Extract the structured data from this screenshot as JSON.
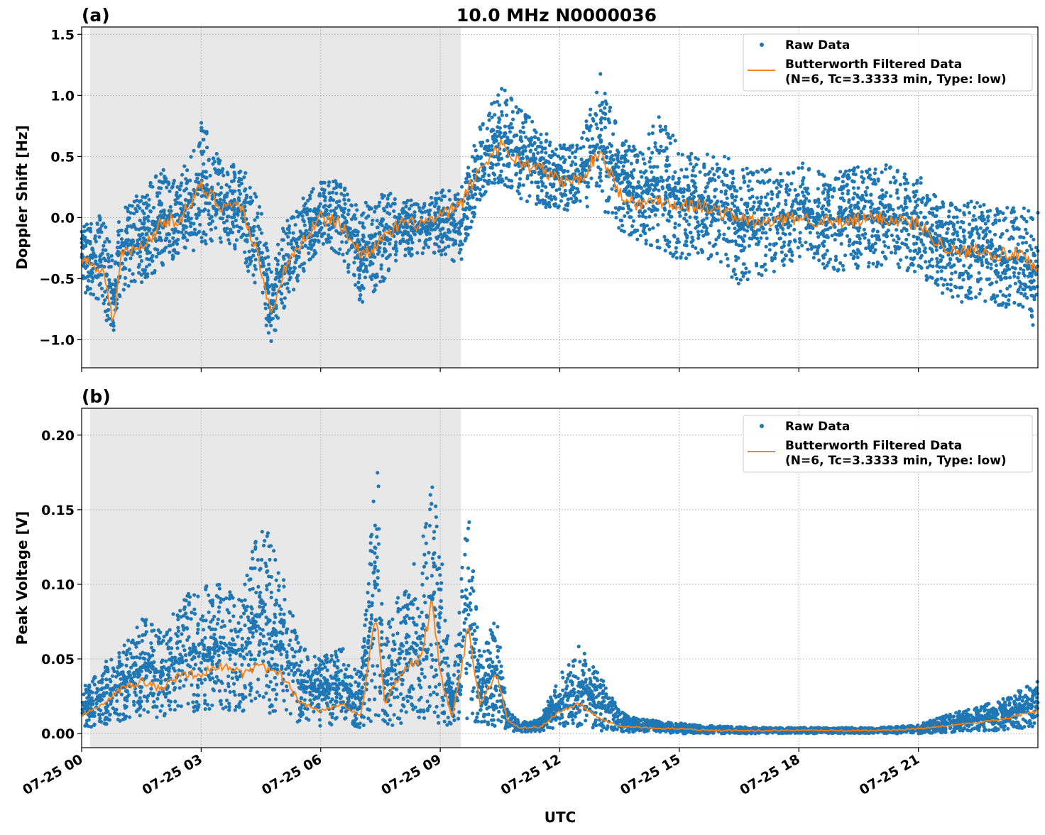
{
  "title": "10.0 MHz N0000036",
  "colors": {
    "raw": "#1f77b4",
    "filtered": "#ff7f0e",
    "shade": "#e8e8e8",
    "grid": "#b0b0b0"
  },
  "chart_data": [
    {
      "type": "scatter",
      "panel_label": "(a)",
      "ylabel": "Doppler Shift [Hz]",
      "xlabel": "",
      "x_unit": "hours UTC on 07-25",
      "xlim": [
        0,
        24
      ],
      "ylim": [
        -1.23,
        1.56
      ],
      "yticks": [
        -1.0,
        -0.5,
        0.0,
        0.5,
        1.0,
        1.5
      ],
      "ytick_labels": [
        "−1.0",
        "−0.5",
        "0.0",
        "0.5",
        "1.0",
        "1.5"
      ],
      "grid": true,
      "shaded_interval": [
        0.21,
        9.52
      ],
      "legend": {
        "placement": "top-right",
        "entries": [
          "Raw Data",
          "Butterworth Filtered Data",
          "(N=6, Tc=3.3333 min, Type: low)"
        ]
      },
      "series": [
        {
          "name": "Raw Data",
          "kind": "scatter-envelope",
          "x": [
            0,
            0.5,
            0.8,
            1,
            1.5,
            2,
            2.5,
            3,
            3.5,
            4,
            4.5,
            4.75,
            5,
            5.5,
            6,
            6.5,
            7,
            7.5,
            8,
            8.5,
            9,
            9.5,
            10,
            10.5,
            11,
            11.5,
            12,
            12.5,
            13,
            13.5,
            14,
            14.5,
            15,
            15.5,
            16,
            16.5,
            17,
            18,
            19,
            20,
            21,
            21.5,
            22,
            22.5,
            23,
            23.5,
            24
          ],
          "low": [
            -0.6,
            -0.7,
            -1.05,
            -0.6,
            -0.55,
            -0.4,
            -0.3,
            -0.25,
            -0.25,
            -0.3,
            -0.7,
            -1.05,
            -0.8,
            -0.5,
            -0.25,
            -0.3,
            -0.7,
            -0.6,
            -0.35,
            -0.3,
            -0.3,
            -0.4,
            0.15,
            0.3,
            0.15,
            0.1,
            0.05,
            0.05,
            0.1,
            -0.1,
            -0.2,
            -0.25,
            -0.35,
            -0.3,
            -0.4,
            -0.55,
            -0.5,
            -0.35,
            -0.45,
            -0.4,
            -0.45,
            -0.6,
            -0.7,
            -0.65,
            -0.75,
            -0.75,
            -1.0
          ],
          "high": [
            -0.05,
            0.05,
            -0.3,
            0.1,
            0.2,
            0.4,
            0.35,
            0.8,
            0.45,
            0.45,
            0.1,
            -0.4,
            -0.1,
            0.15,
            0.3,
            0.3,
            0.1,
            0.2,
            0.2,
            0.1,
            0.25,
            0.25,
            0.75,
            1.1,
            0.9,
            0.75,
            0.6,
            0.6,
            1.2,
            0.7,
            0.55,
            0.85,
            0.6,
            0.5,
            0.55,
            0.45,
            0.4,
            0.45,
            0.4,
            0.45,
            0.35,
            0.15,
            0.1,
            0.15,
            0.1,
            0.1,
            0.05
          ]
        },
        {
          "name": "Butterworth Filtered Data",
          "kind": "line",
          "x": [
            0,
            0.5,
            0.8,
            1,
            1.5,
            2,
            2.5,
            3,
            3.5,
            4,
            4.5,
            4.75,
            5,
            5.5,
            6,
            6.5,
            7,
            7.5,
            8,
            8.5,
            9,
            9.5,
            10,
            10.5,
            11,
            11.5,
            12,
            12.5,
            13,
            13.5,
            14,
            14.5,
            15,
            15.5,
            16,
            16.5,
            17,
            18,
            19,
            20,
            21,
            21.5,
            22,
            22.5,
            23,
            23.5,
            24
          ],
          "y": [
            -0.35,
            -0.4,
            -0.85,
            -0.3,
            -0.25,
            -0.05,
            0.0,
            0.25,
            0.1,
            0.1,
            -0.4,
            -0.8,
            -0.5,
            -0.2,
            0.0,
            -0.05,
            -0.3,
            -0.2,
            -0.05,
            -0.05,
            0.0,
            0.1,
            0.4,
            0.6,
            0.45,
            0.4,
            0.3,
            0.3,
            0.55,
            0.2,
            0.1,
            0.15,
            0.1,
            0.1,
            0.05,
            0.0,
            -0.05,
            0.0,
            -0.05,
            0.0,
            -0.05,
            -0.2,
            -0.3,
            -0.25,
            -0.3,
            -0.3,
            -0.45
          ]
        }
      ]
    },
    {
      "type": "scatter",
      "panel_label": "(b)",
      "ylabel": "Peak Voltage [V]",
      "xlabel": "UTC",
      "x_unit": "hours UTC on 07-25",
      "xlim": [
        0,
        24
      ],
      "ylim": [
        -0.0095,
        0.218
      ],
      "yticks": [
        0.0,
        0.05,
        0.1,
        0.15,
        0.2
      ],
      "ytick_labels": [
        "0.00",
        "0.05",
        "0.10",
        "0.15",
        "0.20"
      ],
      "xticks": [
        0,
        3,
        6,
        9,
        12,
        15,
        18,
        21
      ],
      "xtick_labels": [
        "07-25 00",
        "07-25 03",
        "07-25 06",
        "07-25 09",
        "07-25 12",
        "07-25 15",
        "07-25 18",
        "07-25 21"
      ],
      "grid": true,
      "shaded_interval": [
        0.21,
        9.52
      ],
      "legend": {
        "placement": "top-right",
        "entries": [
          "Raw Data",
          "Butterworth Filtered Data",
          "(N=6, Tc=3.3333 min, Type: low)"
        ]
      },
      "series": [
        {
          "name": "Raw Data",
          "kind": "scatter-envelope",
          "x": [
            0,
            0.5,
            1,
            1.5,
            2,
            2.5,
            3,
            3.5,
            4,
            4.5,
            5,
            5.5,
            6,
            6.5,
            7,
            7.4,
            7.6,
            8,
            8.5,
            8.8,
            9,
            9.3,
            9.7,
            10,
            10.4,
            10.7,
            11,
            11.5,
            12,
            12.5,
            13,
            13.5,
            14,
            15,
            16,
            17,
            18,
            19,
            20,
            21,
            22,
            23,
            24
          ],
          "low": [
            0.004,
            0.005,
            0.008,
            0.01,
            0.01,
            0.012,
            0.015,
            0.015,
            0.015,
            0.015,
            0.012,
            0.006,
            0.005,
            0.006,
            0.004,
            0.01,
            0.005,
            0.006,
            0.008,
            0.01,
            0.006,
            0.003,
            0.01,
            0.005,
            0.005,
            0.002,
            0.001,
            0.001,
            0.004,
            0.005,
            0.002,
            0.001,
            0.001,
            0.0,
            0.0,
            0.0,
            0.0,
            0.0,
            0.0,
            0.0,
            0.001,
            0.002,
            0.004
          ],
          "high": [
            0.03,
            0.045,
            0.06,
            0.08,
            0.07,
            0.09,
            0.1,
            0.1,
            0.09,
            0.15,
            0.11,
            0.06,
            0.05,
            0.06,
            0.04,
            0.2,
            0.07,
            0.1,
            0.12,
            0.17,
            0.13,
            0.03,
            0.16,
            0.05,
            0.08,
            0.015,
            0.008,
            0.01,
            0.04,
            0.06,
            0.04,
            0.015,
            0.01,
            0.007,
            0.005,
            0.004,
            0.004,
            0.004,
            0.004,
            0.006,
            0.015,
            0.022,
            0.035
          ]
        },
        {
          "name": "Butterworth Filtered Data",
          "kind": "line",
          "x": [
            0,
            0.5,
            1,
            1.5,
            2,
            2.5,
            3,
            3.5,
            4,
            4.5,
            5,
            5.5,
            6,
            6.5,
            7,
            7.4,
            7.6,
            8,
            8.5,
            8.8,
            9,
            9.3,
            9.7,
            10,
            10.4,
            10.7,
            11,
            11.5,
            12,
            12.5,
            13,
            13.5,
            14,
            15,
            16,
            17,
            18,
            19,
            20,
            21,
            22,
            23,
            24
          ],
          "y": [
            0.012,
            0.02,
            0.03,
            0.035,
            0.03,
            0.04,
            0.04,
            0.045,
            0.04,
            0.045,
            0.04,
            0.02,
            0.015,
            0.02,
            0.012,
            0.08,
            0.02,
            0.04,
            0.05,
            0.09,
            0.04,
            0.01,
            0.07,
            0.02,
            0.04,
            0.008,
            0.004,
            0.004,
            0.015,
            0.02,
            0.01,
            0.005,
            0.004,
            0.003,
            0.002,
            0.002,
            0.002,
            0.002,
            0.002,
            0.003,
            0.006,
            0.009,
            0.015
          ]
        }
      ]
    }
  ]
}
